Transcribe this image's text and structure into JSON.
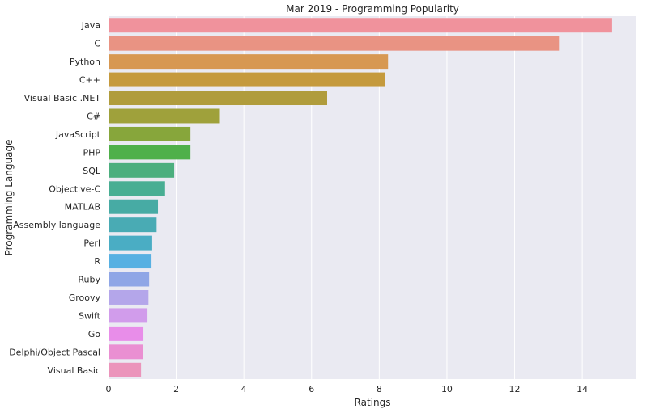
{
  "chart_data": {
    "type": "bar",
    "orientation": "horizontal",
    "title": "Mar 2019 - Programming Popularity",
    "xlabel": "Ratings",
    "ylabel": "Programming Language",
    "xlim": [
      0,
      15.6
    ],
    "xticks": [
      0,
      2,
      4,
      6,
      8,
      10,
      12,
      14
    ],
    "grid": true,
    "categories": [
      "Java",
      "C",
      "Python",
      "C++",
      "Visual Basic .NET",
      "C#",
      "JavaScript",
      "PHP",
      "SQL",
      "Objective-C",
      "MATLAB",
      "Assembly language",
      "Perl",
      "R",
      "Ruby",
      "Groovy",
      "Swift",
      "Go",
      "Delphi/Object Pascal",
      "Visual Basic"
    ],
    "values": [
      14.88,
      13.31,
      8.26,
      8.16,
      6.46,
      3.29,
      2.42,
      2.42,
      1.94,
      1.67,
      1.46,
      1.42,
      1.29,
      1.27,
      1.2,
      1.18,
      1.15,
      1.03,
      1.01,
      0.96
    ],
    "colors": [
      "#f0929c",
      "#e99383",
      "#d79852",
      "#c59a3d",
      "#b09c3c",
      "#9fa13b",
      "#87a63b",
      "#4fb04a",
      "#4caf7e",
      "#48ae93",
      "#47aba4",
      "#49abb4",
      "#4aadc4",
      "#57b0e2",
      "#8fa6e6",
      "#b4a6ea",
      "#d19ceb",
      "#e88de9",
      "#ea8fd2",
      "#eb94bb"
    ]
  }
}
